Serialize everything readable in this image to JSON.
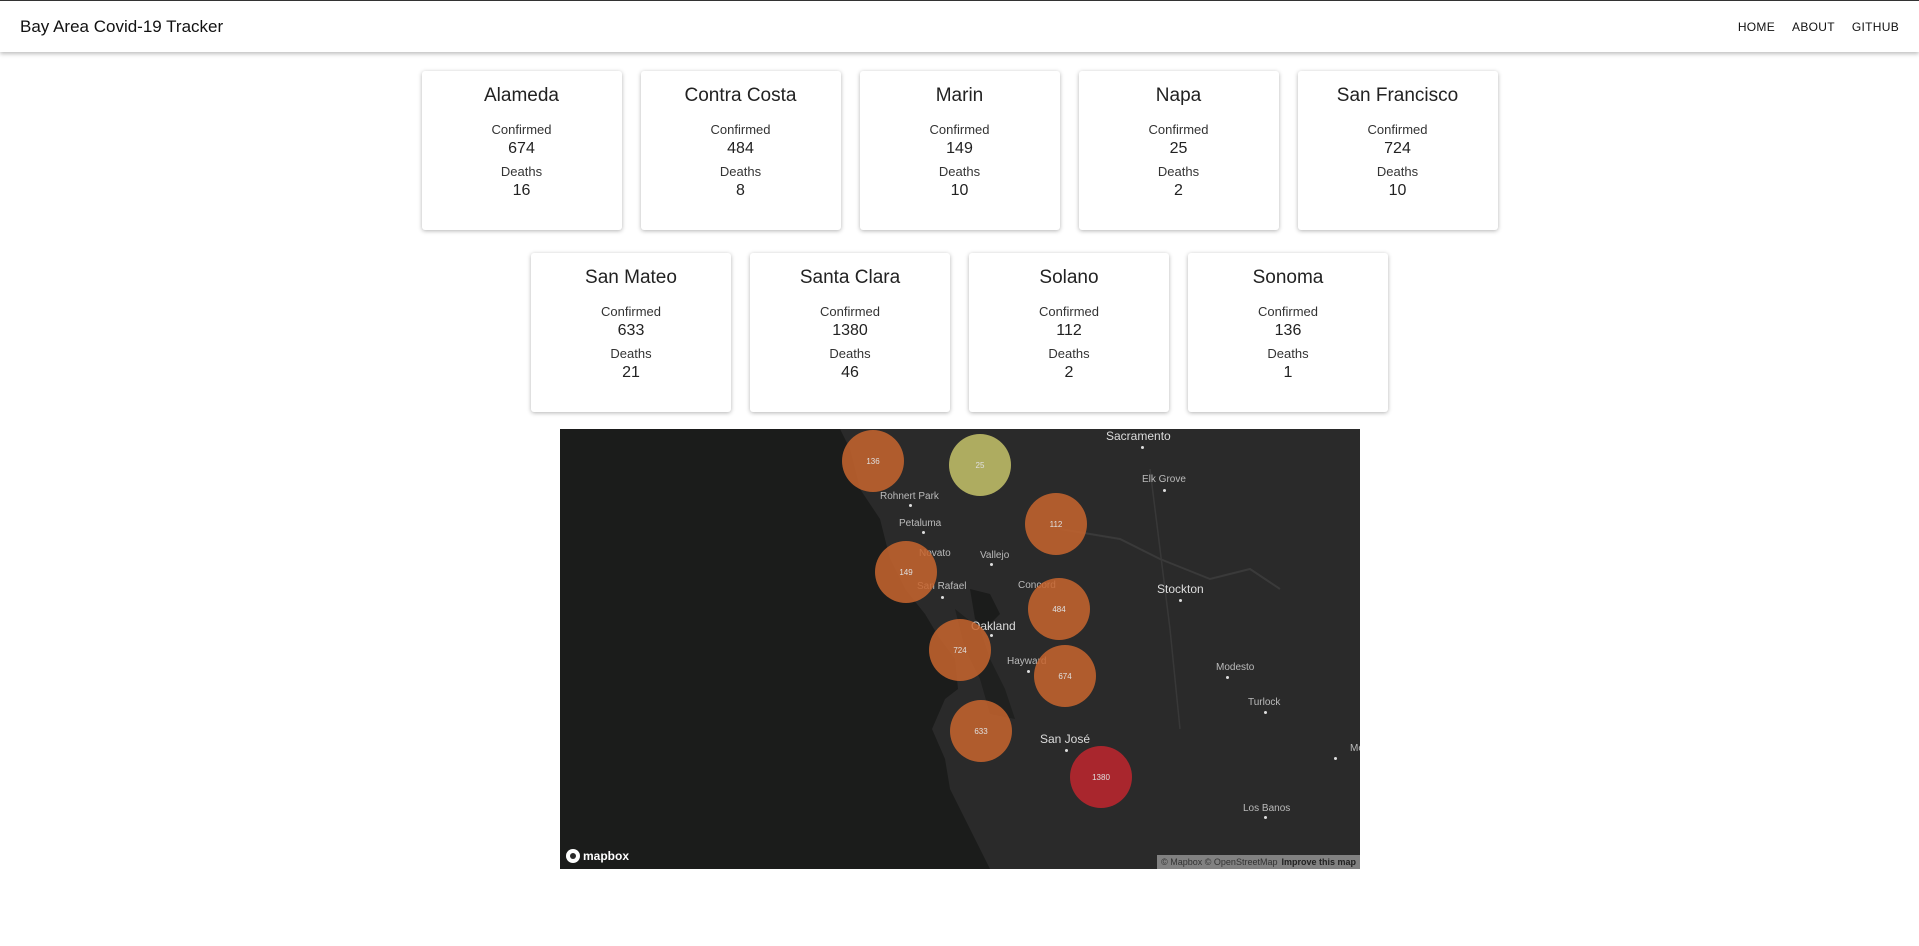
{
  "header": {
    "title": "Bay Area Covid-19 Tracker",
    "nav": [
      "HOME",
      "ABOUT",
      "GITHUB"
    ]
  },
  "labels": {
    "confirmed": "Confirmed",
    "deaths": "Deaths"
  },
  "counties": [
    {
      "name": "Alameda",
      "confirmed": "674",
      "deaths": "16"
    },
    {
      "name": "Contra Costa",
      "confirmed": "484",
      "deaths": "8"
    },
    {
      "name": "Marin",
      "confirmed": "149",
      "deaths": "10"
    },
    {
      "name": "Napa",
      "confirmed": "25",
      "deaths": "2"
    },
    {
      "name": "San Francisco",
      "confirmed": "724",
      "deaths": "10"
    },
    {
      "name": "San Mateo",
      "confirmed": "633",
      "deaths": "21"
    },
    {
      "name": "Santa Clara",
      "confirmed": "1380",
      "deaths": "46"
    },
    {
      "name": "Solano",
      "confirmed": "112",
      "deaths": "2"
    },
    {
      "name": "Sonoma",
      "confirmed": "136",
      "deaths": "1"
    }
  ],
  "map": {
    "cities": [
      "Sacramento",
      "Elk Grove",
      "Rohnert Park",
      "Petaluma",
      "Novato",
      "Vallejo",
      "San Rafael",
      "Concord",
      "Stockton",
      "Oakland",
      "Hayward",
      "Modesto",
      "Turlock",
      "San José",
      "Merced",
      "Los Banos"
    ],
    "clusters": [
      {
        "label": "136",
        "color": "#c8652e"
      },
      {
        "label": "25",
        "color": "#c6c36a"
      },
      {
        "label": "112",
        "color": "#c8652e"
      },
      {
        "label": "149",
        "color": "#c8652e"
      },
      {
        "label": "484",
        "color": "#c8652e"
      },
      {
        "label": "724",
        "color": "#c8652e"
      },
      {
        "label": "674",
        "color": "#c8652e"
      },
      {
        "label": "633",
        "color": "#c8652e"
      },
      {
        "label": "1380",
        "color": "#c0262e"
      }
    ],
    "logo": "mapbox",
    "attribution": "© Mapbox © OpenStreetMap",
    "improve": "Improve this map"
  }
}
